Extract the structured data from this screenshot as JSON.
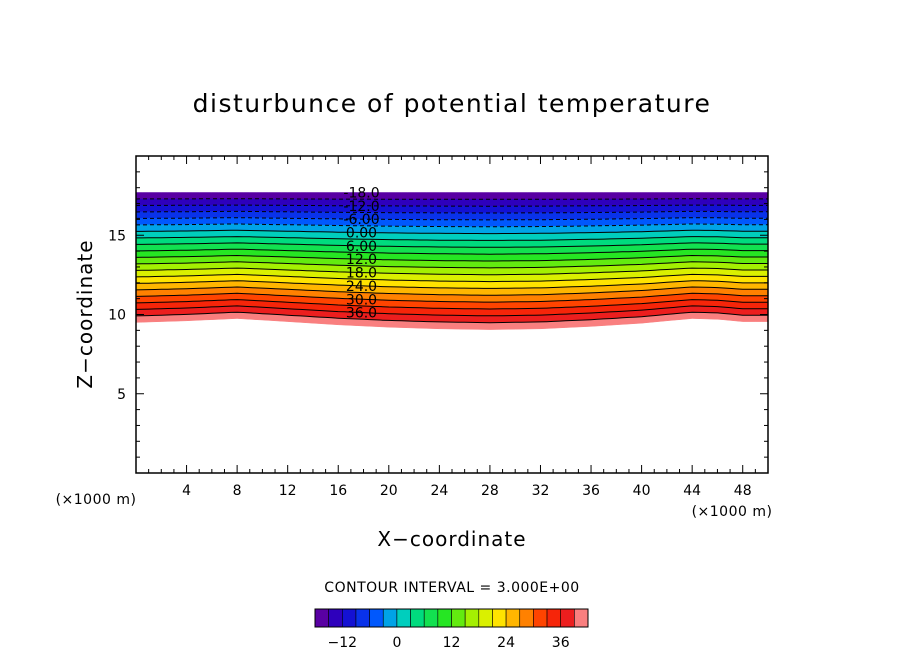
{
  "chart_data": {
    "type": "contour",
    "title": "disturbunce of potential temperature",
    "xlabel": "X−coordinate",
    "ylabel": "Z−coordinate",
    "x_unit": "(×1000 m)",
    "y_unit": "(×1000 m)",
    "xlim": [
      0,
      50
    ],
    "ylim": [
      0,
      20
    ],
    "x_ticks": [
      4,
      8,
      12,
      16,
      20,
      24,
      28,
      32,
      36,
      40,
      44,
      48
    ],
    "x_tick_labels": [
      "4",
      "8",
      "12",
      "16",
      "20",
      "24",
      "28",
      "32",
      "36",
      "40",
      "44",
      "48"
    ],
    "y_ticks": [
      5,
      10,
      15
    ],
    "y_tick_labels": [
      "5",
      "10",
      "15"
    ],
    "contour_interval_text": "CONTOUR INTERVAL = 3.000E+00",
    "contour_interval": 3.0,
    "levels": [
      -18,
      -15,
      -12,
      -9,
      -6,
      -3,
      0,
      3,
      6,
      9,
      12,
      15,
      18,
      21,
      24,
      27,
      30,
      33,
      36,
      39
    ],
    "level_labels": [
      {
        "value": -18,
        "text": "-18.0"
      },
      {
        "value": -12,
        "text": "-12.0"
      },
      {
        "value": -6,
        "text": "-6.00"
      },
      {
        "value": 0,
        "text": "0.00"
      },
      {
        "value": 6,
        "text": "6.00"
      },
      {
        "value": 12,
        "text": "12.0"
      },
      {
        "value": 18,
        "text": "18.0"
      },
      {
        "value": 24,
        "text": "24.0"
      },
      {
        "value": 30,
        "text": "30.0"
      },
      {
        "value": 36,
        "text": "36.0"
      }
    ],
    "field_top_km": 17.7,
    "bottom_boundary_km": {
      "x": [
        0,
        4,
        8,
        12,
        16,
        20,
        24,
        28,
        32,
        36,
        40,
        44,
        46,
        48,
        50
      ],
      "z": [
        9.5,
        9.6,
        9.75,
        9.55,
        9.35,
        9.2,
        9.1,
        9.05,
        9.1,
        9.25,
        9.45,
        9.75,
        9.7,
        9.55,
        9.55
      ]
    },
    "colorbar": {
      "vmin": -18,
      "vmax": 42,
      "tick_values": [
        -12,
        0,
        12,
        24,
        36
      ],
      "tick_labels": [
        "−12",
        "0",
        "12",
        "24",
        "36"
      ]
    }
  }
}
